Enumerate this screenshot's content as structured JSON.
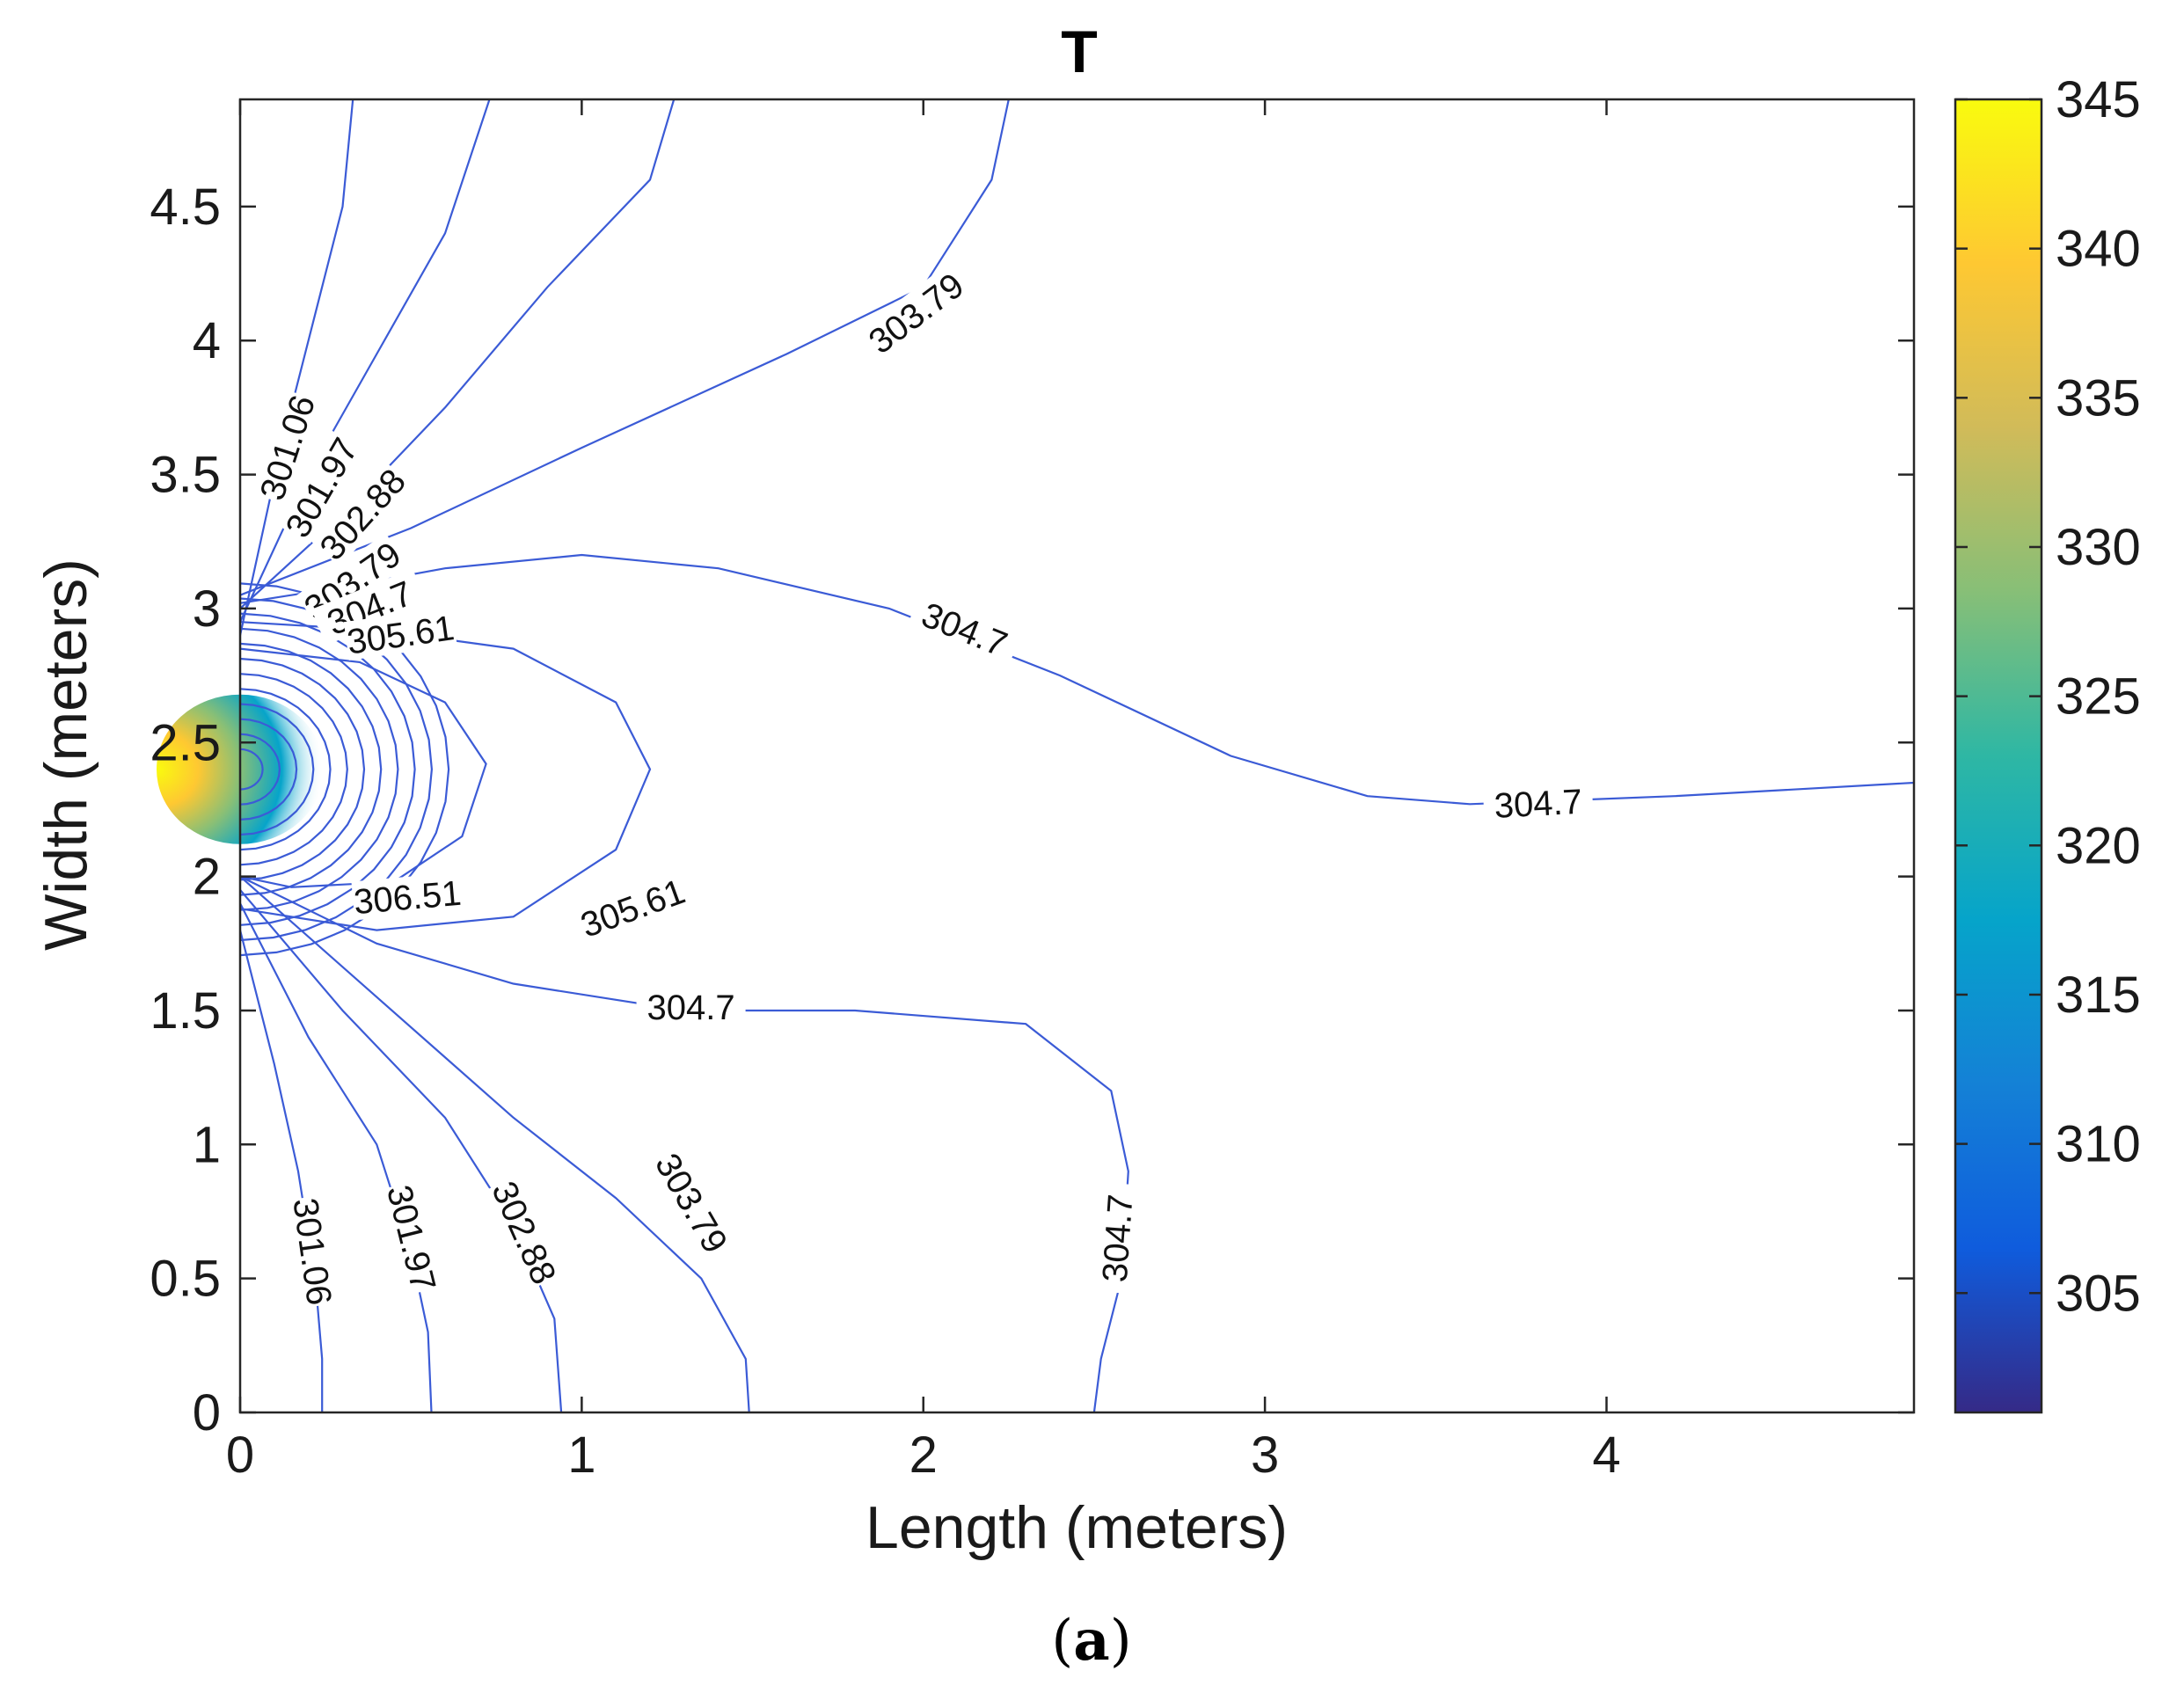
{
  "chart_data": {
    "type": "contour",
    "title": "T",
    "xlabel": "Length (meters)",
    "ylabel": "Width (meters)",
    "xlim": [
      0,
      4.9
    ],
    "ylim": [
      0,
      4.9
    ],
    "xticks": [
      "0",
      "1",
      "2",
      "3",
      "4"
    ],
    "yticks": [
      "0",
      "0.5",
      "1",
      "1.5",
      "2",
      "2.5",
      "3",
      "3.5",
      "4",
      "4.5"
    ],
    "colorbar": {
      "range": [
        301,
        345
      ],
      "ticks": [
        "305",
        "310",
        "315",
        "320",
        "325",
        "330",
        "335",
        "340",
        "345"
      ],
      "colormap": "parula",
      "colors": [
        "#352a87",
        "#0f5cdd",
        "#1481d6",
        "#06a4ca",
        "#2eb7a4",
        "#87bf77",
        "#d1bb59",
        "#fec832",
        "#f9fb0e"
      ]
    },
    "grid": false,
    "source": {
      "x": 0,
      "y": 2.4,
      "peak": 345
    },
    "contours": [
      {
        "level": 301.06,
        "labels": [
          {
            "text": "301.06",
            "x": 0.14,
            "y": 3.6,
            "angle": -72
          },
          {
            "text": "301.06",
            "x": 0.21,
            "y": 0.6,
            "angle": 82
          }
        ]
      },
      {
        "level": 301.97,
        "labels": [
          {
            "text": "301.97",
            "x": 0.24,
            "y": 3.45,
            "angle": -60
          },
          {
            "text": "301.97",
            "x": 0.5,
            "y": 0.65,
            "angle": 76
          }
        ]
      },
      {
        "level": 302.88,
        "labels": [
          {
            "text": "302.88",
            "x": 0.36,
            "y": 3.35,
            "angle": -48
          },
          {
            "text": "302.88",
            "x": 0.83,
            "y": 0.67,
            "angle": 66
          }
        ]
      },
      {
        "level": 303.79,
        "labels": [
          {
            "text": "303.79",
            "x": 0.33,
            "y": 3.1,
            "angle": -35
          },
          {
            "text": "303.79",
            "x": 1.98,
            "y": 4.1,
            "angle": -37
          },
          {
            "text": "303.79",
            "x": 1.32,
            "y": 0.78,
            "angle": 60
          }
        ]
      },
      {
        "level": 304.7,
        "labels": [
          {
            "text": "304.7",
            "x": 0.38,
            "y": 3.0,
            "angle": -22
          },
          {
            "text": "304.7",
            "x": 2.12,
            "y": 2.92,
            "angle": 22
          },
          {
            "text": "304.7",
            "x": 3.8,
            "y": 2.27,
            "angle": -3
          },
          {
            "text": "304.7",
            "x": 1.32,
            "y": 1.51,
            "angle": 0
          },
          {
            "text": "304.7",
            "x": 2.57,
            "y": 0.65,
            "angle": -86
          }
        ]
      },
      {
        "level": 305.61,
        "labels": [
          {
            "text": "305.61",
            "x": 0.47,
            "y": 2.9,
            "angle": -8
          },
          {
            "text": "305.61",
            "x": 1.15,
            "y": 1.88,
            "angle": -20
          }
        ]
      },
      {
        "level": 306.51,
        "labels": [
          {
            "text": "306.51",
            "x": 0.49,
            "y": 1.92,
            "angle": -5
          }
        ]
      }
    ]
  }
}
